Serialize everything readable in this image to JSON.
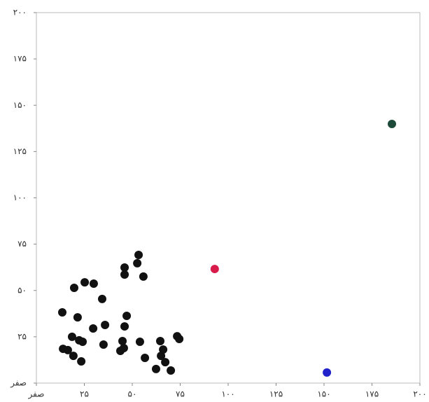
{
  "chart_data": {
    "type": "scatter",
    "xlim": [
      0,
      200
    ],
    "ylim": [
      0,
      200
    ],
    "xticks": [
      {
        "value": 0,
        "label": "صفر"
      },
      {
        "value": 25,
        "label": "۲۵"
      },
      {
        "value": 50,
        "label": "۵۰"
      },
      {
        "value": 75,
        "label": "۷۵"
      },
      {
        "value": 100,
        "label": "۱۰۰"
      },
      {
        "value": 125,
        "label": "۱۲۵"
      },
      {
        "value": 150,
        "label": "۱۵۰"
      },
      {
        "value": 175,
        "label": "۱۷۵"
      },
      {
        "value": 200,
        "label": "۲۰۰"
      }
    ],
    "yticks": [
      {
        "value": 0,
        "label": "صفر"
      },
      {
        "value": 25,
        "label": "۲۵"
      },
      {
        "value": 50,
        "label": "۵۰"
      },
      {
        "value": 75,
        "label": "۷۵"
      },
      {
        "value": 100,
        "label": "۱۰۰"
      },
      {
        "value": 125,
        "label": "۱۲۵"
      },
      {
        "value": 150,
        "label": "۱۵۰"
      },
      {
        "value": 175,
        "label": "۱۷۵"
      },
      {
        "value": 200,
        "label": "۲۰۰"
      }
    ],
    "series": [
      {
        "color": "#111111",
        "x": [
          53.3,
          52.6,
          46.0,
          46.0,
          55.8,
          19.7,
          25.2,
          29.9,
          34.3,
          13.5,
          21.5,
          47.1,
          46.0,
          35.8,
          29.6,
          18.6,
          22.3,
          24.1,
          13.9,
          16.4,
          19.3,
          23.4,
          35.0,
          44.9,
          45.6,
          43.8,
          54.0,
          64.6,
          66.1,
          65.0,
          56.6,
          67.2,
          62.4,
          70.1,
          73.4,
          74.5
        ],
        "values": [
          69.2,
          64.7,
          62.4,
          58.6,
          57.5,
          51.4,
          54.4,
          53.7,
          45.4,
          38.2,
          35.5,
          36.3,
          30.6,
          31.4,
          29.5,
          25.0,
          23.1,
          22.3,
          18.5,
          17.8,
          14.7,
          11.7,
          20.8,
          22.7,
          18.9,
          17.4,
          22.3,
          22.7,
          18.1,
          14.7,
          13.6,
          11.3,
          7.6,
          6.8,
          25.3,
          23.8
        ]
      },
      {
        "color": "#d81b4a",
        "x": [
          93.0
        ],
        "values": [
          61.6
        ]
      },
      {
        "color": "#2222cc",
        "x": [
          151.5
        ],
        "values": [
          5.7
        ]
      },
      {
        "color": "#1e4a3a",
        "x": [
          185.4
        ],
        "values": [
          139.9
        ]
      }
    ]
  }
}
